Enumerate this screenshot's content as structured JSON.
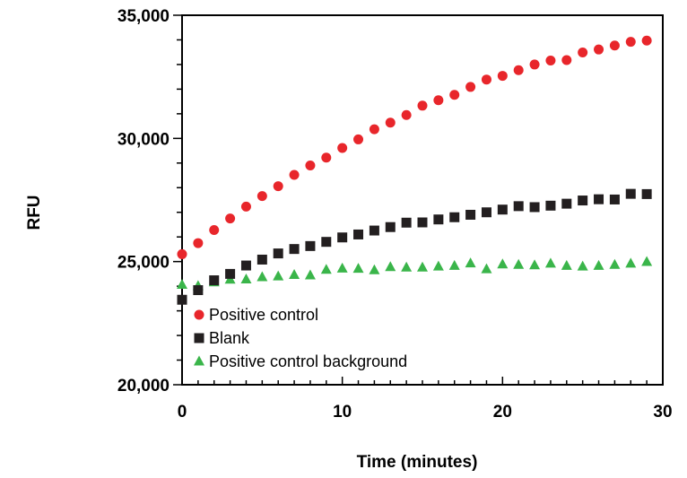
{
  "chart_data": {
    "type": "scatter",
    "title": "",
    "xlabel": "Time (minutes)",
    "ylabel": "RFU",
    "xlim": [
      0,
      30
    ],
    "ylim": [
      20000,
      35000
    ],
    "x_ticks": [
      0,
      10,
      20,
      30
    ],
    "x_tick_labels": [
      "0",
      "10",
      "20",
      "30"
    ],
    "y_ticks": [
      20000,
      25000,
      30000,
      35000
    ],
    "y_tick_labels": [
      "20,000",
      "25,000",
      "30,000",
      "35,000"
    ],
    "grid": false,
    "legend_position": "lower-left",
    "x": [
      0,
      1,
      2,
      3,
      4,
      5,
      6,
      7,
      8,
      9,
      10,
      11,
      12,
      13,
      14,
      15,
      16,
      17,
      18,
      19,
      20,
      21,
      22,
      23,
      24,
      25,
      26,
      27,
      28,
      29
    ],
    "series": [
      {
        "name": "Positive control",
        "marker": "circle",
        "color": "#e8262b",
        "values": [
          25300,
          25750,
          26280,
          26750,
          27230,
          27660,
          28060,
          28520,
          28900,
          29220,
          29610,
          29960,
          30370,
          30640,
          30950,
          31330,
          31550,
          31770,
          32090,
          32390,
          32540,
          32770,
          33000,
          33160,
          33180,
          33490,
          33610,
          33770,
          33920,
          33970
        ]
      },
      {
        "name": "Blank",
        "marker": "square",
        "color": "#231f20",
        "values": [
          23450,
          23840,
          24240,
          24500,
          24840,
          25080,
          25330,
          25510,
          25630,
          25800,
          25980,
          26100,
          26260,
          26400,
          26580,
          26590,
          26710,
          26800,
          26900,
          27000,
          27110,
          27250,
          27210,
          27270,
          27350,
          27480,
          27530,
          27520,
          27750,
          27740
        ]
      },
      {
        "name": "Positive control background",
        "marker": "triangle",
        "color": "#3ab54a",
        "values": [
          24060,
          24010,
          24160,
          24270,
          24280,
          24370,
          24400,
          24460,
          24440,
          24670,
          24720,
          24710,
          24650,
          24780,
          24760,
          24760,
          24800,
          24830,
          24930,
          24690,
          24890,
          24870,
          24850,
          24920,
          24830,
          24800,
          24830,
          24870,
          24920,
          24990
        ]
      }
    ]
  }
}
